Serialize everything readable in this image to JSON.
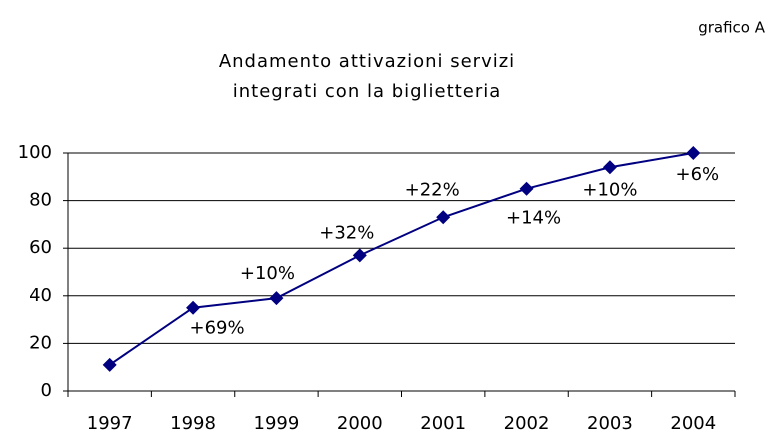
{
  "chart_data": {
    "type": "line",
    "corner_label": "grafico A",
    "title": [
      "Andamento attivazioni servizi",
      "integrati con la biglietteria"
    ],
    "categories": [
      "1997",
      "1998",
      "1999",
      "2000",
      "2001",
      "2002",
      "2003",
      "2004"
    ],
    "series": [
      {
        "color": "#000080",
        "values": [
          11,
          35,
          39,
          57,
          73,
          85,
          94,
          100
        ]
      }
    ],
    "change_labels": [
      null,
      "+69%",
      "+10%",
      "+32%",
      "+22%",
      "+14%",
      "+10%",
      "+6%"
    ],
    "ylim": [
      0,
      100
    ],
    "yticks": [
      0,
      20,
      40,
      60,
      80,
      100
    ],
    "grid": true
  }
}
